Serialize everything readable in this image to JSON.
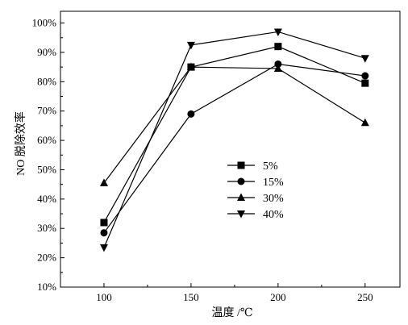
{
  "chart_data": {
    "type": "line",
    "xlabel": "温度 /℃",
    "ylabel": "NO 脱除效率",
    "x_ticks": [
      "100",
      "150",
      "200",
      "250"
    ],
    "y_ticks": [
      "10%",
      "20%",
      "30%",
      "40%",
      "50%",
      "60%",
      "70%",
      "80%",
      "90%",
      "100%"
    ],
    "xlim": [
      75,
      270
    ],
    "ylim": [
      10,
      104
    ],
    "grid": false,
    "legend_position": "center-right",
    "x": [
      100,
      150,
      200,
      250
    ],
    "series": [
      {
        "name": "5%",
        "marker": "square",
        "values": [
          32,
          85,
          92,
          79.5
        ]
      },
      {
        "name": "15%",
        "marker": "circle",
        "values": [
          28.5,
          69,
          86,
          82
        ]
      },
      {
        "name": "30%",
        "marker": "triangle-up",
        "values": [
          45.5,
          85,
          84.5,
          66
        ]
      },
      {
        "name": "40%",
        "marker": "triangle-down",
        "values": [
          23.5,
          92.5,
          97,
          88
        ]
      }
    ]
  }
}
